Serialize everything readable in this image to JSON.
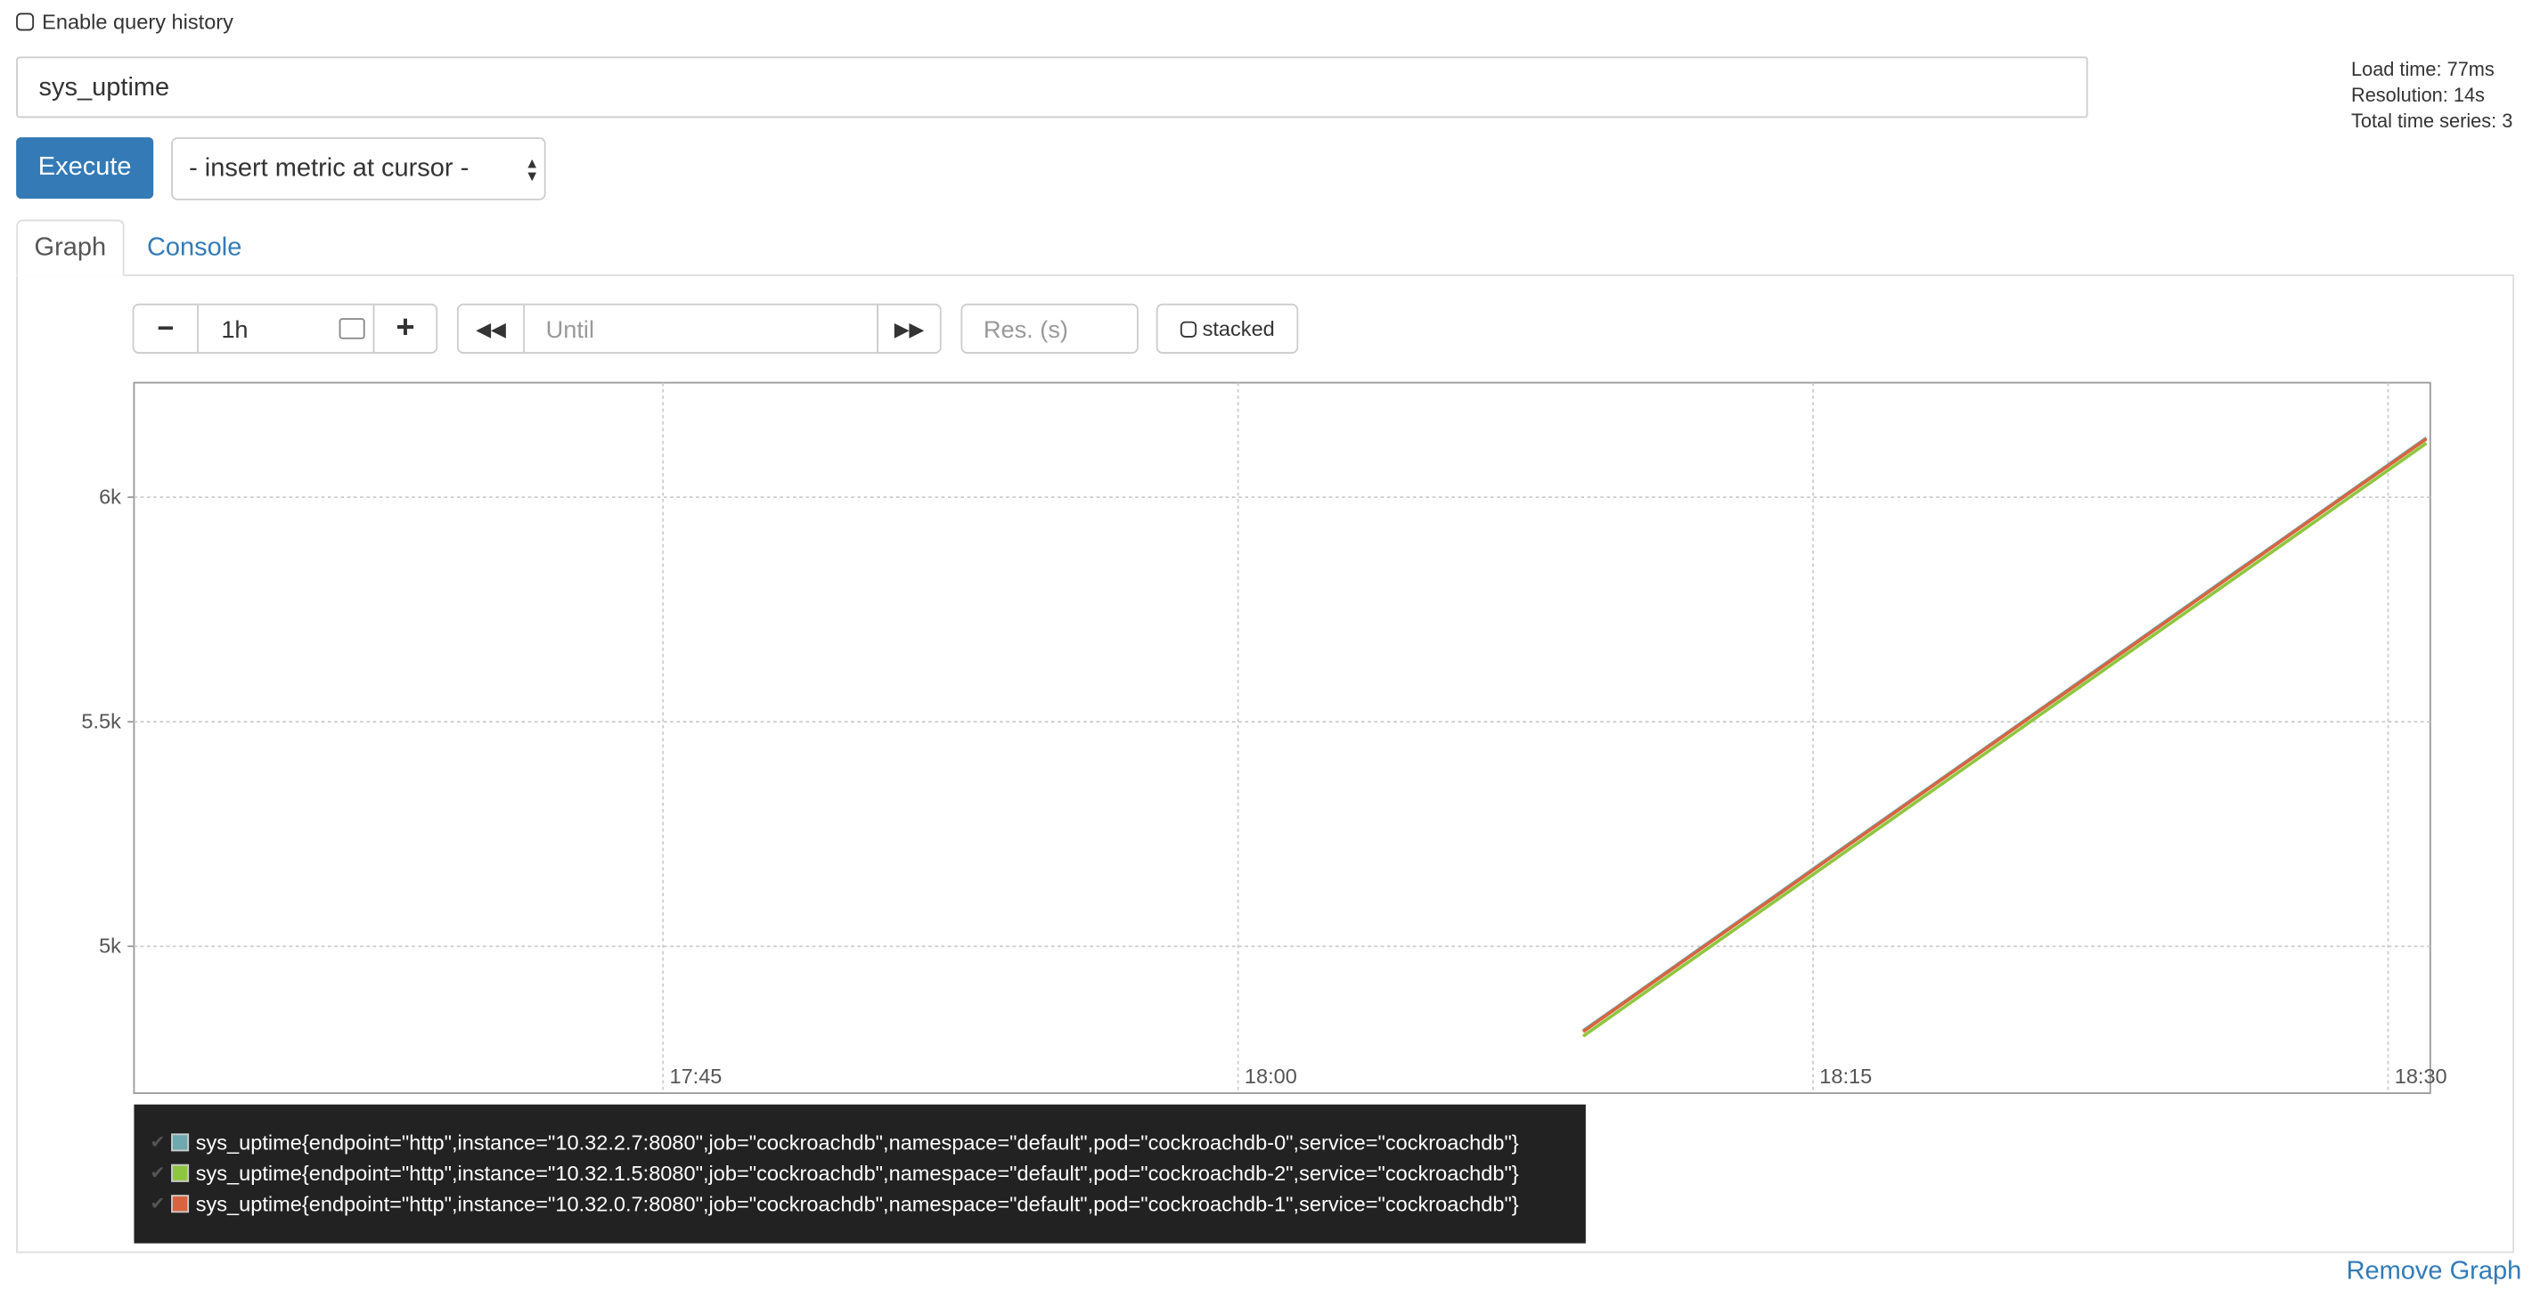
{
  "query_history_label": "Enable query history",
  "query": "sys_uptime",
  "execute_button": "Execute",
  "metric_select": "- insert metric at cursor -",
  "stats": [
    "Load time: 77ms",
    "Resolution: 14s",
    "Total time series: 3"
  ],
  "tabs": [
    "Graph",
    "Console"
  ],
  "controls": {
    "minus": "−",
    "range": "1h",
    "plus": "+",
    "until": "Until",
    "resolution": "Res. (s)",
    "stacked": "stacked"
  },
  "remove_graph": "Remove Graph",
  "chart_data": {
    "type": "line",
    "x": [
      1089,
      1090,
      1091,
      1092,
      1093,
      1094,
      1095,
      1096,
      1097,
      1098,
      1099,
      1100,
      1101,
      1102,
      1103,
      1104,
      1105,
      1106,
      1107,
      1108,
      1109,
      1110,
      1111
    ],
    "series": [
      {
        "name": "sys_uptime{endpoint=\"http\",instance=\"10.32.2.7:8080\",job=\"cockroachdb\",namespace=\"default\",pod=\"cockroachdb-0\",service=\"cockroachdb\"}",
        "color": "#6fa9b0",
        "values": [
          4812,
          4872,
          4932,
          4992,
          5052,
          5112,
          5172,
          5232,
          5292,
          5352,
          5412,
          5472,
          5532,
          5592,
          5652,
          5712,
          5772,
          5832,
          5892,
          5952,
          6012,
          6072,
          6132
        ]
      },
      {
        "name": "sys_uptime{endpoint=\"http\",instance=\"10.32.1.5:8080\",job=\"cockroachdb\",namespace=\"default\",pod=\"cockroachdb-2\",service=\"cockroachdb\"}",
        "color": "#8fc63f",
        "values": [
          4800,
          4860,
          4920,
          4980,
          5040,
          5100,
          5160,
          5220,
          5280,
          5340,
          5400,
          5460,
          5520,
          5580,
          5640,
          5700,
          5760,
          5820,
          5880,
          5940,
          6000,
          6060,
          6120
        ]
      },
      {
        "name": "sys_uptime{endpoint=\"http\",instance=\"10.32.0.7:8080\",job=\"cockroachdb\",namespace=\"default\",pod=\"cockroachdb-1\",service=\"cockroachdb\"}",
        "color": "#d9633f",
        "values": [
          4810,
          4870,
          4930,
          4990,
          5050,
          5110,
          5170,
          5230,
          5290,
          5350,
          5410,
          5470,
          5530,
          5590,
          5650,
          5710,
          5770,
          5830,
          5890,
          5950,
          6010,
          6070,
          6130
        ]
      }
    ],
    "xlim": [
      1051.2,
      1111.1
    ],
    "xticks": [
      {
        "value": 1065,
        "label": "17:45"
      },
      {
        "value": 1080,
        "label": "18:00"
      },
      {
        "value": 1095,
        "label": "18:15"
      },
      {
        "value": 1110,
        "label": "18:30"
      }
    ],
    "ylim": [
      4673,
      6255
    ],
    "yticks": [
      {
        "value": 5000,
        "label": "5k"
      },
      {
        "value": 5500,
        "label": "5.5k"
      },
      {
        "value": 6000,
        "label": "6k"
      }
    ],
    "grid": true
  }
}
